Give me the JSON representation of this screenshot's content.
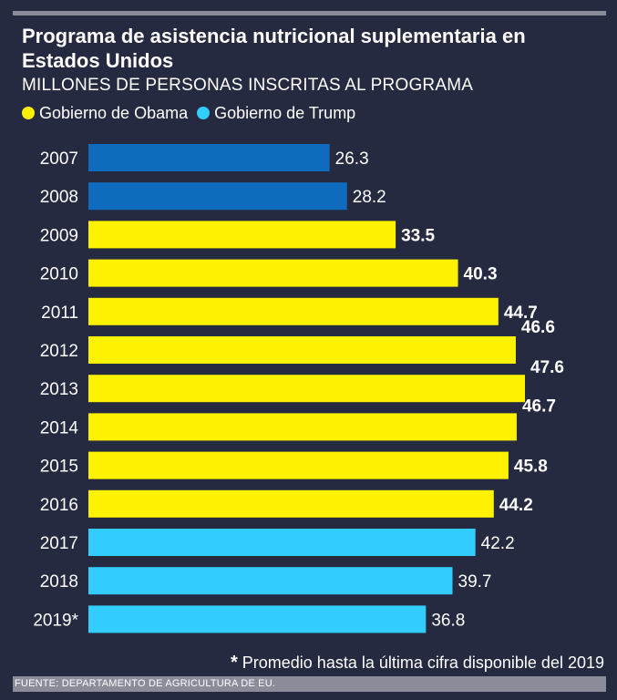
{
  "header": {
    "title": "Programa de asistencia nutricional suplementaria en Estados Unidos",
    "subtitle": "MILLONES DE PERSONAS INSCRITAS AL PROGRAMA"
  },
  "legend": [
    {
      "label": "Gobierno de Obama",
      "color": "#fff200"
    },
    {
      "label": "Gobierno de Trump",
      "color": "#33ccff"
    }
  ],
  "chart_data": {
    "type": "bar",
    "orientation": "horizontal",
    "categories": [
      "2007",
      "2008",
      "2009",
      "2010",
      "2011",
      "2012",
      "2013",
      "2014",
      "2015",
      "2016",
      "2017",
      "2018",
      "2019*"
    ],
    "values": [
      26.3,
      28.2,
      33.5,
      40.3,
      44.7,
      46.6,
      47.6,
      46.7,
      45.8,
      44.2,
      42.2,
      39.7,
      36.8
    ],
    "value_labels": [
      "26.3",
      "28.2",
      "33.5",
      "40.3",
      "44.7",
      "46.6",
      "47.6",
      "46.7",
      "45.8",
      "44.2",
      "42.2",
      "39.7",
      "36.8"
    ],
    "bar_colors": [
      "#0f6bbd",
      "#0f6bbd",
      "#fff200",
      "#fff200",
      "#fff200",
      "#fff200",
      "#fff200",
      "#fff200",
      "#fff200",
      "#fff200",
      "#33ccff",
      "#33ccff",
      "#33ccff"
    ],
    "value_label_bold": [
      false,
      false,
      true,
      true,
      true,
      true,
      true,
      true,
      true,
      true,
      false,
      false,
      false
    ],
    "xlim": [
      0,
      47.6
    ],
    "grid": false,
    "legend_placement": "top-left"
  },
  "footnote": {
    "marker": "*",
    "text": "Promedio hasta la última cifra disponible del 2019"
  },
  "source": "FUENTE: DEPARTAMENTO DE AGRICULTURA DE EU."
}
